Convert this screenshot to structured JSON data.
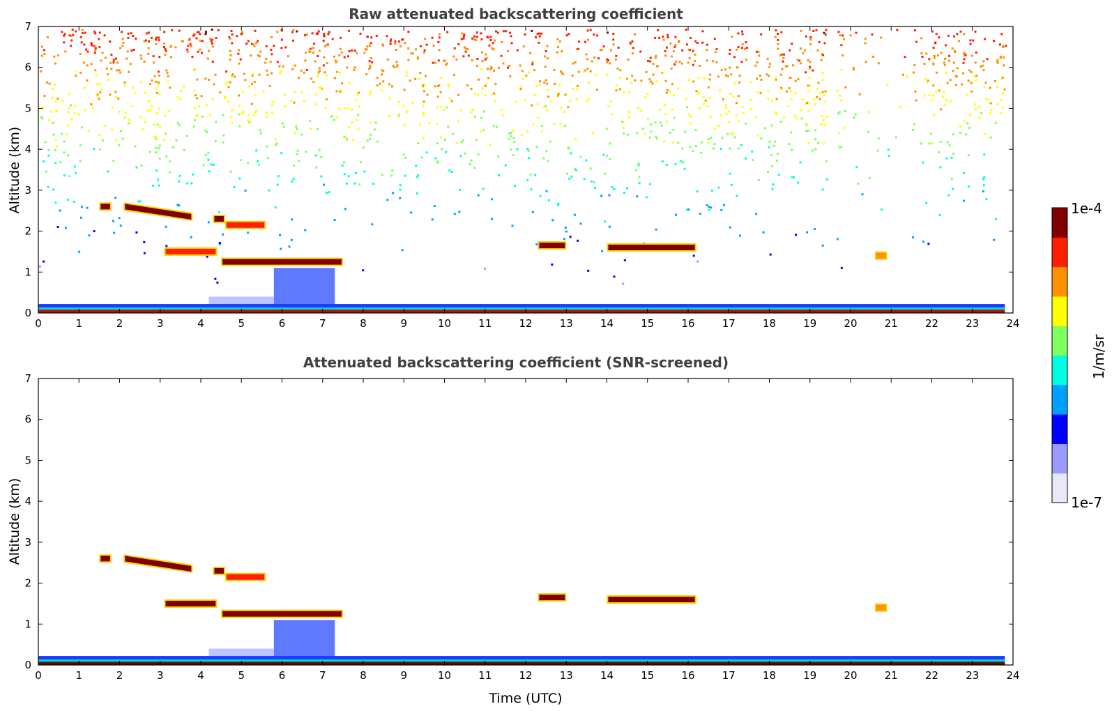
{
  "chart_data": [
    {
      "type": "heatmap",
      "title": "Raw attenuated backscattering coefficient",
      "xlabel": "",
      "ylabel": "Altitude (km)",
      "xlim": [
        0,
        24
      ],
      "ylim": [
        0,
        7
      ],
      "xticks": [
        0,
        1,
        2,
        3,
        4,
        5,
        6,
        7,
        8,
        9,
        10,
        11,
        12,
        13,
        14,
        15,
        16,
        17,
        18,
        19,
        20,
        21,
        22,
        23,
        24
      ],
      "yticks": [
        0,
        1,
        2,
        3,
        4,
        5,
        6,
        7
      ],
      "data_end_time": 23.8,
      "surface_layer": {
        "top_km": 0.22,
        "value": 5e-05
      },
      "cloud_layers": [
        {
          "t0": 1.5,
          "t1": 1.8,
          "alt_km": 2.6,
          "value": 8e-05
        },
        {
          "t0": 2.1,
          "t1": 3.8,
          "alt_km_start": 2.6,
          "alt_km_end": 2.35,
          "value": 8e-05
        },
        {
          "t0": 3.1,
          "t1": 4.4,
          "alt_km": 1.5,
          "value": 6e-05
        },
        {
          "t0": 4.3,
          "t1": 4.6,
          "alt_km": 2.3,
          "value": 9e-05
        },
        {
          "t0": 4.6,
          "t1": 5.6,
          "alt_km": 2.15,
          "value": 4e-05
        },
        {
          "t0": 4.5,
          "t1": 7.5,
          "alt_km": 1.25,
          "value": 8e-05
        },
        {
          "t0": 12.3,
          "t1": 13.0,
          "alt_km": 1.65,
          "value": 8e-05
        },
        {
          "t0": 14.0,
          "t1": 16.2,
          "alt_km": 1.6,
          "value": 7e-05
        },
        {
          "t0": 20.6,
          "t1": 20.9,
          "alt_km": 1.4,
          "value": 2e-05
        }
      ],
      "aerosol_plumes": [
        {
          "t0": 5.8,
          "t1": 7.3,
          "top_km": 1.1,
          "value": 5e-07
        }
      ],
      "noise": "increasing with altitude (yellow/orange near top), gaps near 19.5-20.5 and 21.5 UTC"
    },
    {
      "type": "heatmap",
      "title": "Attenuated backscattering coefficient (SNR-screened)",
      "xlabel": "Time (UTC)",
      "ylabel": "Altitude (km)",
      "xlim": [
        0,
        24
      ],
      "ylim": [
        0,
        7
      ],
      "xticks": [
        0,
        1,
        2,
        3,
        4,
        5,
        6,
        7,
        8,
        9,
        10,
        11,
        12,
        13,
        14,
        15,
        16,
        17,
        18,
        19,
        20,
        21,
        22,
        23,
        24
      ],
      "yticks": [
        0,
        1,
        2,
        3,
        4,
        5,
        6,
        7
      ],
      "data_end_time": 23.8,
      "surface_layer": {
        "top_km": 0.22,
        "value": 5e-05
      },
      "cloud_layers": [
        {
          "t0": 1.5,
          "t1": 1.8,
          "alt_km": 2.6,
          "value": 0.0001
        },
        {
          "t0": 2.1,
          "t1": 3.8,
          "alt_km_start": 2.6,
          "alt_km_end": 2.35,
          "value": 8e-05
        },
        {
          "t0": 3.1,
          "t1": 4.4,
          "alt_km": 1.5,
          "value": 8e-05
        },
        {
          "t0": 4.3,
          "t1": 4.6,
          "alt_km": 2.3,
          "value": 9e-05
        },
        {
          "t0": 4.6,
          "t1": 5.6,
          "alt_km": 2.15,
          "value": 4e-05
        },
        {
          "t0": 4.5,
          "t1": 7.5,
          "alt_km": 1.25,
          "value": 0.0001
        },
        {
          "t0": 12.3,
          "t1": 13.0,
          "alt_km": 1.65,
          "value": 0.0001
        },
        {
          "t0": 14.0,
          "t1": 16.2,
          "alt_km": 1.6,
          "value": 8e-05
        },
        {
          "t0": 20.6,
          "t1": 20.9,
          "alt_km": 1.4,
          "value": 2e-05
        }
      ],
      "aerosol_plumes": [
        {
          "t0": 5.8,
          "t1": 7.3,
          "top_km": 1.1,
          "value": 5e-07
        }
      ]
    }
  ],
  "colorbar": {
    "label": "1/m/sr",
    "max_label": "1e-4",
    "min_label": "1e-7",
    "scale": "log",
    "colors": [
      "#e8e8f8",
      "#9a9aff",
      "#0000ff",
      "#00a0ff",
      "#00ffe0",
      "#80ff60",
      "#ffff00",
      "#ff9000",
      "#ff2000",
      "#800000"
    ]
  }
}
